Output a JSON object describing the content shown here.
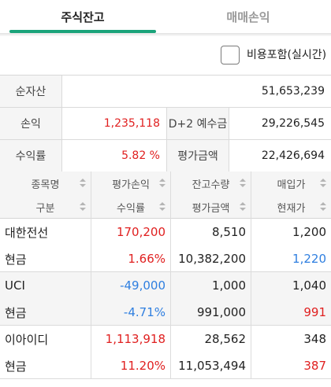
{
  "tabs": [
    "주식잔고",
    "매매손익"
  ],
  "checkbox": {
    "label": "비용포함(실시간)",
    "checked": false
  },
  "summary": {
    "net_assets_label": "순자산",
    "net_assets": "51,653,239",
    "pnl_label": "손익",
    "pnl": "1,235,118",
    "deposit_label": "D+2 예수금",
    "deposit": "29,226,545",
    "return_label": "수익률",
    "return": "5.82 %",
    "eval_label": "평가금액",
    "eval": "22,426,694"
  },
  "grid_headers": {
    "row1": [
      "종목명",
      "평가손익",
      "잔고수량",
      "매입가"
    ],
    "row2": [
      "구분",
      "수익률",
      "평가금액",
      "현재가"
    ]
  },
  "holdings": [
    {
      "name": "대한전선",
      "type": "현금",
      "pnl": "170,200",
      "pnl_color": "#e02020",
      "rate": "1.66%",
      "rate_color": "#e02020",
      "qty": "8,510",
      "eval": "10,382,200",
      "buy_price": "1,200",
      "cur_price": "1,220",
      "cur_color": "#2f7fe0"
    },
    {
      "name": "UCI",
      "type": "현금",
      "pnl": "-49,000",
      "pnl_color": "#2f7fe0",
      "rate": "-4.71%",
      "rate_color": "#2f7fe0",
      "qty": "1,000",
      "eval": "991,000",
      "buy_price": "1,040",
      "cur_price": "991",
      "cur_color": "#e02020"
    },
    {
      "name": "이아이디",
      "type": "현금",
      "pnl": "1,113,918",
      "pnl_color": "#e02020",
      "rate": "11.20%",
      "rate_color": "#e02020",
      "qty": "28,562",
      "eval": "11,053,494",
      "buy_price": "348",
      "cur_price": "387",
      "cur_color": "#e02020"
    }
  ],
  "colors": {
    "accent": "#1aa37a",
    "up": "#e02020",
    "down": "#2f7fe0",
    "type_label": "#13a178"
  }
}
